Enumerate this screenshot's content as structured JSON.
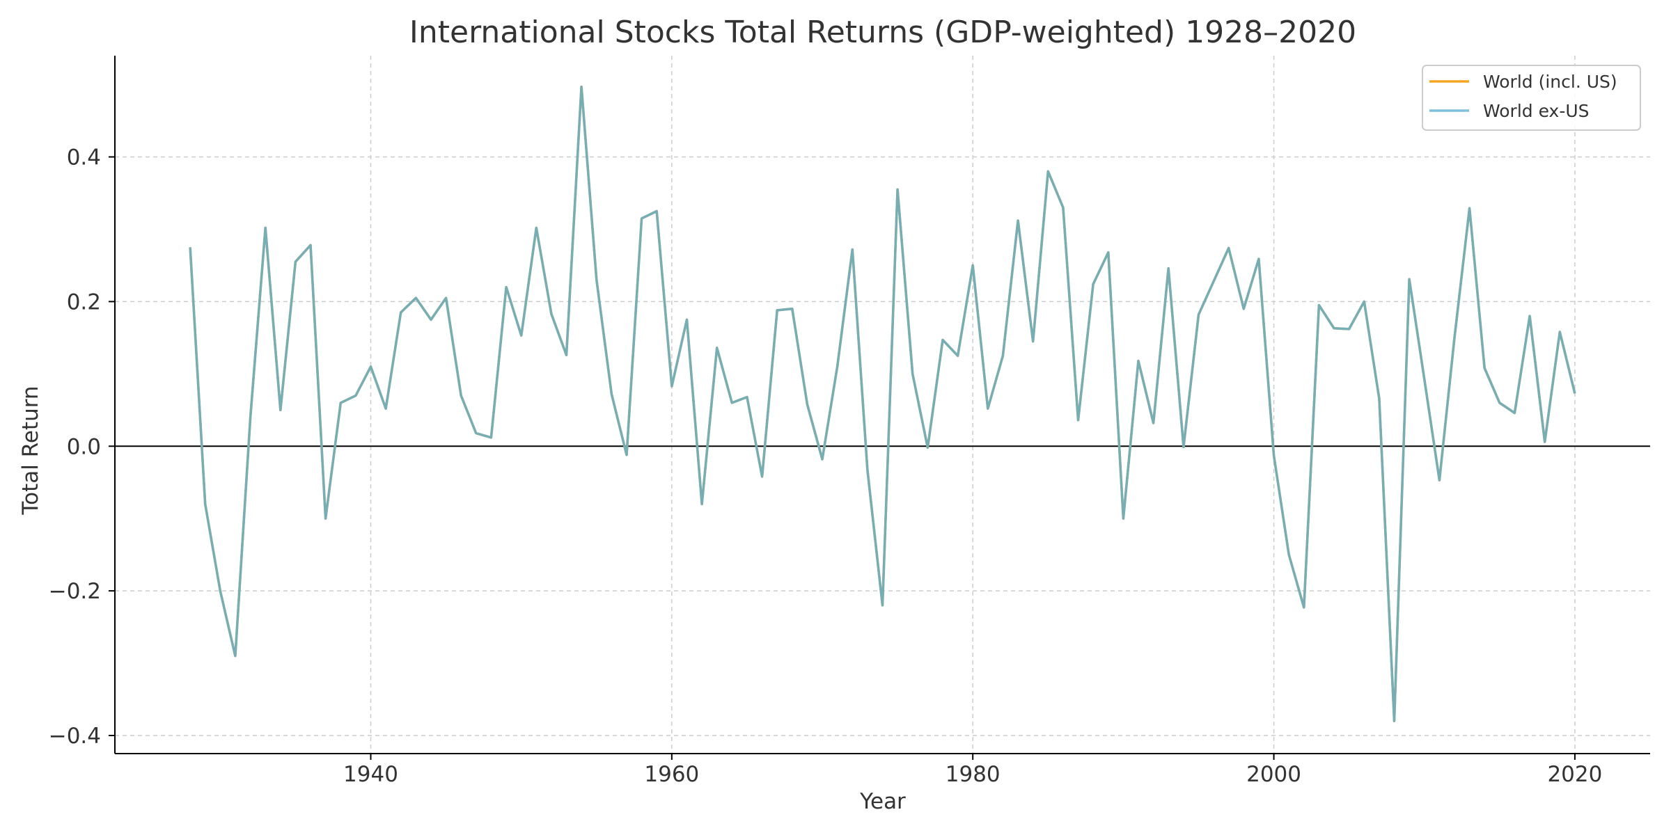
{
  "chart_data": {
    "type": "line",
    "title": "International Stocks Total Returns (GDP-weighted) 1928–2020",
    "xlabel": "Year",
    "ylabel": "Total Return",
    "xlim": [
      1923,
      2025
    ],
    "ylim": [
      -0.425,
      0.54
    ],
    "xticks": [
      1940,
      1960,
      1980,
      2000,
      2020
    ],
    "yticks": [
      -0.4,
      -0.2,
      0.0,
      0.2,
      0.4
    ],
    "ytick_labels": [
      "−0.4",
      "−0.2",
      "0.0",
      "0.2",
      "0.4"
    ],
    "grid": true,
    "legend_position": "top-right",
    "x": [
      1928,
      1929,
      1930,
      1931,
      1932,
      1933,
      1934,
      1935,
      1936,
      1937,
      1938,
      1939,
      1940,
      1941,
      1942,
      1943,
      1944,
      1945,
      1946,
      1947,
      1948,
      1949,
      1950,
      1951,
      1952,
      1953,
      1954,
      1955,
      1956,
      1957,
      1958,
      1959,
      1960,
      1961,
      1962,
      1963,
      1964,
      1965,
      1966,
      1967,
      1968,
      1969,
      1970,
      1971,
      1972,
      1973,
      1974,
      1975,
      1976,
      1977,
      1978,
      1979,
      1980,
      1981,
      1982,
      1983,
      1984,
      1985,
      1986,
      1987,
      1988,
      1989,
      1990,
      1991,
      1992,
      1993,
      1994,
      1995,
      1996,
      1997,
      1998,
      1999,
      2000,
      2001,
      2002,
      2003,
      2004,
      2005,
      2006,
      2007,
      2008,
      2009,
      2010,
      2011,
      2012,
      2013,
      2014,
      2015,
      2016,
      2017,
      2018,
      2019,
      2020
    ],
    "series": [
      {
        "name": "World (incl. US)",
        "color": "#f5a623",
        "values": [
          0.275,
          -0.08,
          -0.2,
          -0.29,
          0.04,
          0.302,
          0.05,
          0.255,
          0.278,
          -0.1,
          0.06,
          0.07,
          0.11,
          0.052,
          0.185,
          0.205,
          0.175,
          0.205,
          0.07,
          0.018,
          0.012,
          0.22,
          0.153,
          0.302,
          0.183,
          0.126,
          0.497,
          0.23,
          0.072,
          -0.012,
          0.315,
          0.325,
          0.083,
          0.175,
          -0.08,
          0.136,
          0.06,
          0.068,
          -0.042,
          0.188,
          0.19,
          0.058,
          -0.018,
          0.11,
          0.272,
          -0.033,
          -0.22,
          0.355,
          0.1,
          -0.002,
          0.147,
          0.125,
          0.25,
          0.052,
          0.125,
          0.312,
          0.145,
          0.38,
          0.33,
          0.036,
          0.224,
          0.268,
          -0.1,
          0.118,
          0.032,
          0.246,
          -0.001,
          0.182,
          0.228,
          0.274,
          0.19,
          0.259,
          -0.013,
          -0.15,
          -0.223,
          0.195,
          0.163,
          0.162,
          0.2,
          0.066,
          -0.38,
          0.231,
          0.093,
          -0.047,
          0.15,
          0.329,
          0.108,
          0.06,
          0.046,
          0.18,
          0.006,
          0.158,
          0.073
        ]
      },
      {
        "name": "World ex-US",
        "color": "#7fbfe0",
        "values": [
          0.275,
          -0.08,
          -0.2,
          -0.29,
          0.04,
          0.302,
          0.05,
          0.255,
          0.278,
          -0.1,
          0.06,
          0.07,
          0.11,
          0.052,
          0.185,
          0.205,
          0.175,
          0.205,
          0.07,
          0.018,
          0.012,
          0.22,
          0.153,
          0.302,
          0.183,
          0.126,
          0.497,
          0.23,
          0.072,
          -0.012,
          0.315,
          0.325,
          0.083,
          0.175,
          -0.08,
          0.136,
          0.06,
          0.068,
          -0.042,
          0.188,
          0.19,
          0.058,
          -0.018,
          0.11,
          0.272,
          -0.033,
          -0.22,
          0.355,
          0.1,
          -0.002,
          0.147,
          0.125,
          0.25,
          0.052,
          0.125,
          0.312,
          0.145,
          0.38,
          0.33,
          0.036,
          0.224,
          0.268,
          -0.1,
          0.118,
          0.032,
          0.246,
          -0.001,
          0.182,
          0.228,
          0.274,
          0.19,
          0.259,
          -0.013,
          -0.15,
          -0.223,
          0.195,
          0.163,
          0.162,
          0.2,
          0.066,
          -0.38,
          0.231,
          0.093,
          -0.047,
          0.15,
          0.329,
          0.108,
          0.06,
          0.046,
          0.18,
          0.006,
          0.158,
          0.073
        ]
      }
    ],
    "overlap_color": "#76aeb5"
  }
}
